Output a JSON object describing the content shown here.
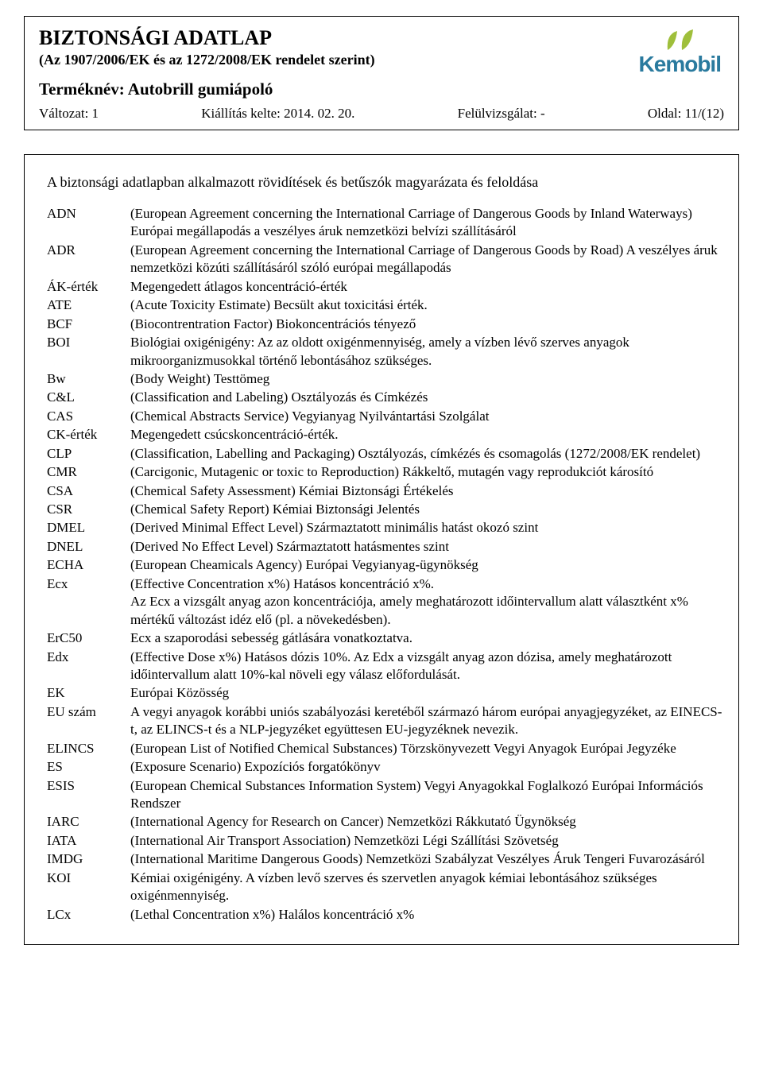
{
  "header": {
    "title": "BIZTONSÁGI ADATLAP",
    "subtitle": "(Az 1907/2006/EK és az 1272/2008/EK rendelet szerint)",
    "product_label": "Terméknév: Autobrill gumiápoló",
    "version": "Változat: 1",
    "issued": "Kiállítás kelte: 2014. 02. 20.",
    "revision": "Felülvizsgálat: -",
    "page": "Oldal: 11/(12)"
  },
  "logo": {
    "brand": "Kemobil",
    "brand_color": "#2a7a9e",
    "accent_color": "#9fbf3b"
  },
  "content": {
    "heading": "A biztonsági adatlapban alkalmazott rövidítések és betűszók magyarázata és feloldása",
    "items": [
      {
        "term": "ADN",
        "def": "(European Agreement concerning the International Carriage of Dangerous Goods by Inland Waterways) Európai megállapodás a veszélyes áruk nemzetközi belvízi szállításáról"
      },
      {
        "term": "ADR",
        "def": "(European Agreement concerning the International Carriage of Dangerous Goods by Road) A veszélyes áruk nemzetközi közúti szállításáról szóló európai megállapodás"
      },
      {
        "term": "ÁK-érték",
        "def": "Megengedett átlagos koncentráció-érték"
      },
      {
        "term": "ATE",
        "def": "(Acute Toxicity Estimate) Becsült akut toxicitási érték."
      },
      {
        "term": "BCF",
        "def": "(Biocontrentration Factor) Biokoncentrációs tényező"
      },
      {
        "term": "BOI",
        "def": "Biológiai oxigénigény: Az az oldott oxigénmennyiség, amely a vízben lévő szerves anyagok mikroorganizmusokkal történő lebontásához szükséges."
      },
      {
        "term": "Bw",
        "def": "(Body Weight) Testtömeg"
      },
      {
        "term": "C&L",
        "def": "(Classification and Labeling) Osztályozás és Címkézés"
      },
      {
        "term": "CAS",
        "def": "(Chemical Abstracts Service) Vegyianyag Nyilvántartási Szolgálat"
      },
      {
        "term": "CK-érték",
        "def": "Megengedett csúcskoncentráció-érték."
      },
      {
        "term": "CLP",
        "def": "(Classification, Labelling and Packaging) Osztályozás, címkézés és csomagolás (1272/2008/EK rendelet)"
      },
      {
        "term": "CMR",
        "def": "(Carcigonic, Mutagenic or toxic to Reproduction) Rákkeltő, mutagén vagy reprodukciót károsító"
      },
      {
        "term": "CSA",
        "def": "(Chemical Safety Assessment) Kémiai Biztonsági Értékelés"
      },
      {
        "term": "CSR",
        "def": "(Chemical Safety Report) Kémiai Biztonsági Jelentés"
      },
      {
        "term": "DMEL",
        "def": "(Derived Minimal Effect Level) Származtatott minimális hatást okozó szint"
      },
      {
        "term": "DNEL",
        "def": "(Derived No Effect Level) Származtatott hatásmentes szint"
      },
      {
        "term": "ECHA",
        "def": "(European Cheamicals Agency) Európai Vegyianyag-ügynökség"
      },
      {
        "term": "Ecx",
        "def": "(Effective Concentration x%) Hatásos koncentráció x%.\nAz Ecx a vizsgált anyag azon koncentrációja, amely meghatározott időintervallum alatt választként x% mértékű változást idéz elő (pl. a növekedésben)."
      },
      {
        "term": "ErC50",
        "def": "Ecx a szaporodási sebesség gátlására vonatkoztatva."
      },
      {
        "term": "Edx",
        "def": "(Effective Dose x%) Hatásos dózis 10%. Az Edx a vizsgált anyag azon dózisa, amely meghatározott időintervallum alatt 10%-kal növeli egy válasz előfordulását."
      },
      {
        "term": "EK",
        "def": "Európai Közösség"
      },
      {
        "term": "EU szám",
        "def": "A vegyi anyagok korábbi uniós szabályozási keretéből származó három európai anyagjegyzéket, az EINECS-t, az ELINCS-t és a NLP-jegyzéket együttesen EU-jegyzéknek nevezik."
      },
      {
        "term": "ELINCS",
        "def": "(European List of Notified Chemical Substances) Törzskönyvezett Vegyi Anyagok Európai Jegyzéke"
      },
      {
        "term": "ES",
        "def": "(Exposure Scenario) Expozíciós forgatókönyv"
      },
      {
        "term": "ESIS",
        "def": "(European Chemical Substances Information System) Vegyi Anyagokkal Foglalkozó Európai Információs Rendszer"
      },
      {
        "term": "IARC",
        "def": "(International Agency for Research on Cancer) Nemzetközi Rákkutató Ügynökség"
      },
      {
        "term": "IATA",
        "def": "(International Air Transport Association) Nemzetközi Légi Szállítási Szövetség"
      },
      {
        "term": "IMDG",
        "def": "(International Maritime Dangerous Goods) Nemzetközi Szabályzat Veszélyes Áruk Tengeri Fuvarozásáról"
      },
      {
        "term": "KOI",
        "def": "Kémiai oxigénigény. A vízben levő szerves és szervetlen anyagok kémiai lebontásához szükséges oxigénmennyiség."
      },
      {
        "term": "LCx",
        "def": "(Lethal Concentration x%) Halálos koncentráció x%"
      }
    ]
  }
}
